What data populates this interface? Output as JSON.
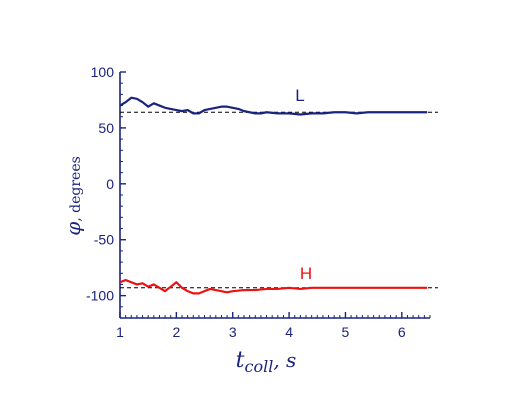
{
  "chart_data": {
    "type": "line",
    "title": "",
    "xlabel": {
      "main": "t",
      "sub": "coll",
      "suffix": ", s"
    },
    "ylabel": {
      "symbol": "φ",
      "unit": ",  degrees"
    },
    "xlim": [
      1,
      6.5
    ],
    "ylim": [
      -120,
      100
    ],
    "x_ticks": [
      1,
      2,
      3,
      4,
      5,
      6
    ],
    "y_ticks": [
      100,
      50,
      0,
      -50,
      -100
    ],
    "x_minor_step": 0.1,
    "y_minor_step": 10,
    "grid": false,
    "series": [
      {
        "name": "L",
        "color": "#1a237e",
        "reference_level": 64,
        "x": [
          1.0,
          1.1,
          1.2,
          1.3,
          1.4,
          1.5,
          1.6,
          1.7,
          1.8,
          1.9,
          2.0,
          2.1,
          2.2,
          2.3,
          2.4,
          2.5,
          2.6,
          2.7,
          2.8,
          2.9,
          3.0,
          3.1,
          3.2,
          3.3,
          3.4,
          3.5,
          3.6,
          3.8,
          4.0,
          4.2,
          4.4,
          4.6,
          4.8,
          5.0,
          5.2,
          5.4,
          5.6,
          5.8,
          6.0,
          6.2,
          6.45
        ],
        "y": [
          70,
          73,
          77,
          76,
          73,
          69,
          72,
          70,
          68,
          67,
          66,
          65,
          66,
          63,
          63,
          66,
          67,
          68,
          69,
          69,
          68,
          67,
          65,
          64,
          63,
          63,
          64,
          63,
          63,
          62,
          63,
          63,
          64,
          64,
          63,
          64,
          64,
          64,
          64,
          64,
          64
        ]
      },
      {
        "name": "H",
        "color": "#ee1111",
        "reference_level": -93,
        "x": [
          1.0,
          1.1,
          1.2,
          1.3,
          1.4,
          1.5,
          1.6,
          1.7,
          1.8,
          1.9,
          2.0,
          2.1,
          2.2,
          2.3,
          2.4,
          2.5,
          2.6,
          2.7,
          2.8,
          2.9,
          3.0,
          3.2,
          3.4,
          3.6,
          3.8,
          4.0,
          4.2,
          4.4,
          4.6,
          4.8,
          5.0,
          5.2,
          5.4,
          5.6,
          5.8,
          6.0,
          6.2,
          6.45
        ],
        "y": [
          -88,
          -86,
          -88,
          -90,
          -89,
          -92,
          -90,
          -93,
          -96,
          -92,
          -88,
          -93,
          -96,
          -98,
          -98,
          -96,
          -94,
          -95,
          -96,
          -97,
          -96,
          -95,
          -95,
          -94,
          -94,
          -93,
          -94,
          -93,
          -93,
          -93,
          -93,
          -93,
          -93,
          -93,
          -93,
          -93,
          -93,
          -93
        ]
      }
    ]
  }
}
